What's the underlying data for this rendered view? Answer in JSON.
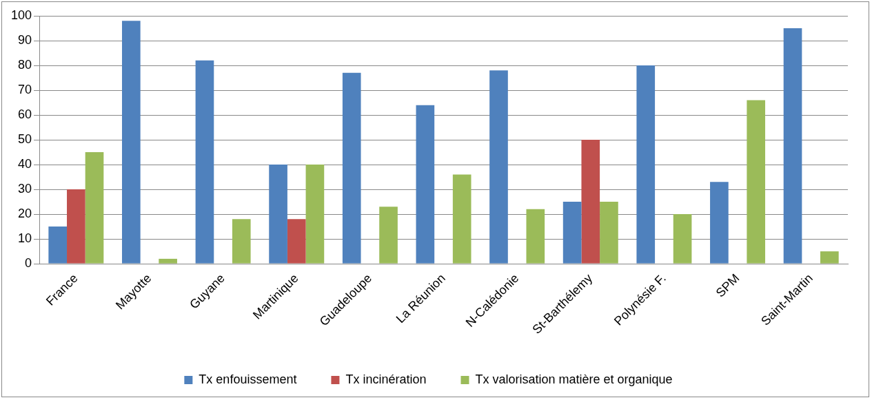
{
  "chart_data": {
    "type": "bar",
    "categories": [
      "France",
      "Mayotte",
      "Guyane",
      "Martinique",
      "Guadeloupe",
      "La Réunion",
      "N-Calédonie",
      "St-Barthélemy",
      "Polynésie F.",
      "SPM",
      "Saint-Martin"
    ],
    "series": [
      {
        "name": "Tx enfouissement",
        "color": "#4f81bd",
        "values": [
          15,
          98,
          82,
          40,
          77,
          64,
          78,
          25,
          80,
          33,
          95
        ]
      },
      {
        "name": "Tx incinération",
        "color": "#c0504d",
        "values": [
          30,
          null,
          null,
          18,
          null,
          null,
          null,
          50,
          null,
          null,
          null
        ]
      },
      {
        "name": "Tx valorisation matière et organique",
        "color": "#9bbb59",
        "values": [
          45,
          2,
          18,
          40,
          23,
          36,
          22,
          25,
          20,
          66,
          5
        ]
      }
    ],
    "ylim": [
      0,
      100
    ],
    "yticks": [
      0,
      10,
      20,
      30,
      40,
      50,
      60,
      70,
      80,
      90,
      100
    ],
    "grid": "y",
    "legend": "bottom"
  }
}
